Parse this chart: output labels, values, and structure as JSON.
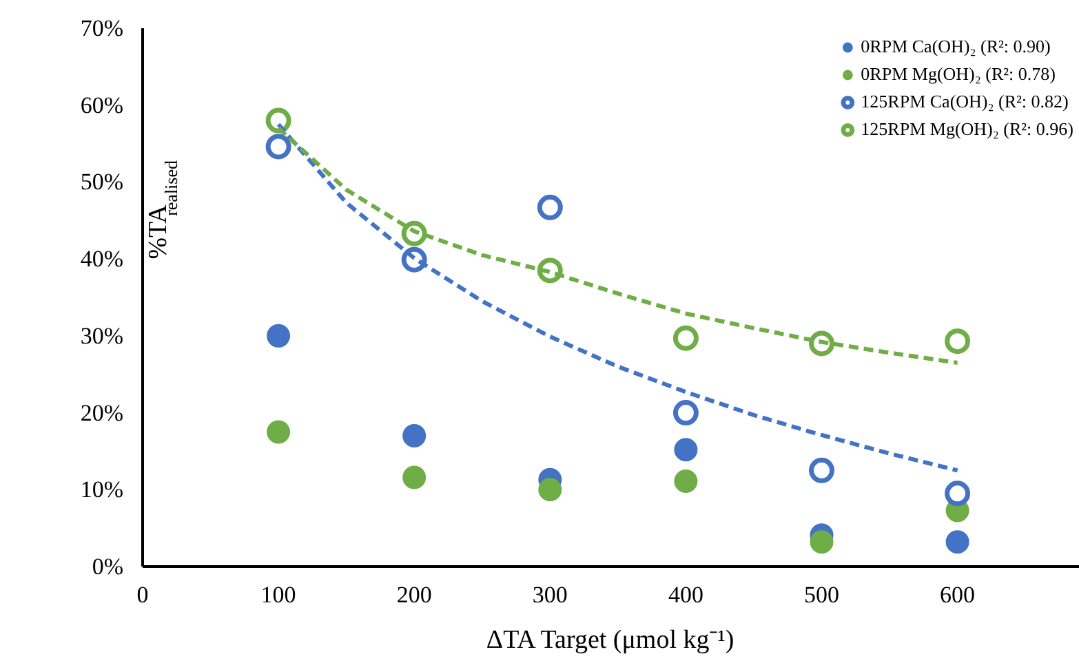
{
  "chart_data": {
    "type": "scatter",
    "xlabel": "ΔTA Target (μmol kg⁻¹)",
    "ylabel": "%TA$_{realised}$",
    "xlim": [
      0,
      690
    ],
    "xticks": [
      0,
      100,
      200,
      300,
      400,
      500,
      600
    ],
    "ylim": [
      0,
      70
    ],
    "yticks": [
      {
        "value": 0,
        "label": "0%"
      },
      {
        "value": 10,
        "label": "10%"
      },
      {
        "value": 20,
        "label": "20%"
      },
      {
        "value": 30,
        "label": "30%"
      },
      {
        "value": 40,
        "label": "40%"
      },
      {
        "value": 50,
        "label": "50%"
      },
      {
        "value": 60,
        "label": "60%"
      },
      {
        "value": 70,
        "label": "70%"
      }
    ],
    "grid": false,
    "legend": "top right",
    "x": [
      100,
      200,
      300,
      400,
      500,
      600
    ],
    "series": [
      {
        "name": "0RPM Ca(OH)₂ (R²: 0.90)",
        "color": "#4472c4",
        "marker": "circle",
        "values": [
          30,
          17,
          11.3,
          15.2,
          4.1,
          3.2
        ]
      },
      {
        "name": "0RPM Mg(OH)₂ (R²: 0.78)",
        "color": "#70ad47",
        "marker": "circle",
        "values": [
          17.5,
          11.6,
          10,
          11.1,
          3.2,
          7.3
        ]
      },
      {
        "name": "125RPM Ca(OH)₂ (R²: 0.82)",
        "color": "#4472c4",
        "marker": "circle",
        "values": [
          54.6,
          39.9,
          46.7,
          20,
          12.5,
          9.5
        ]
      },
      {
        "name": "125RPM Mg(OH)₂ (R²: 0.96)",
        "color": "#70ad47",
        "marker": "circle",
        "values": [
          58,
          43.3,
          38.5,
          29.7,
          29,
          29.3
        ]
      },
      {
        "type": "line",
        "marker": "none",
        "line_style": "dashed",
        "color": "#4472c4",
        "x": [
          100,
          150,
          200,
          250,
          300,
          350,
          400,
          450,
          500,
          550,
          600
        ],
        "values": [
          57.5,
          47.3,
          40.1,
          34.5,
          29.9,
          26,
          22.7,
          19.7,
          17.1,
          14.7,
          12.5
        ]
      },
      {
        "type": "line",
        "marker": "none",
        "line_style": "dashed",
        "color": "#70ad47",
        "x": [
          100,
          150,
          200,
          250,
          300,
          350,
          400,
          450,
          500,
          550,
          600
        ],
        "values": [
          57,
          49,
          43.6,
          40.5,
          38.3,
          35.5,
          32.9,
          31,
          29.2,
          27.8,
          26.5
        ]
      }
    ]
  }
}
